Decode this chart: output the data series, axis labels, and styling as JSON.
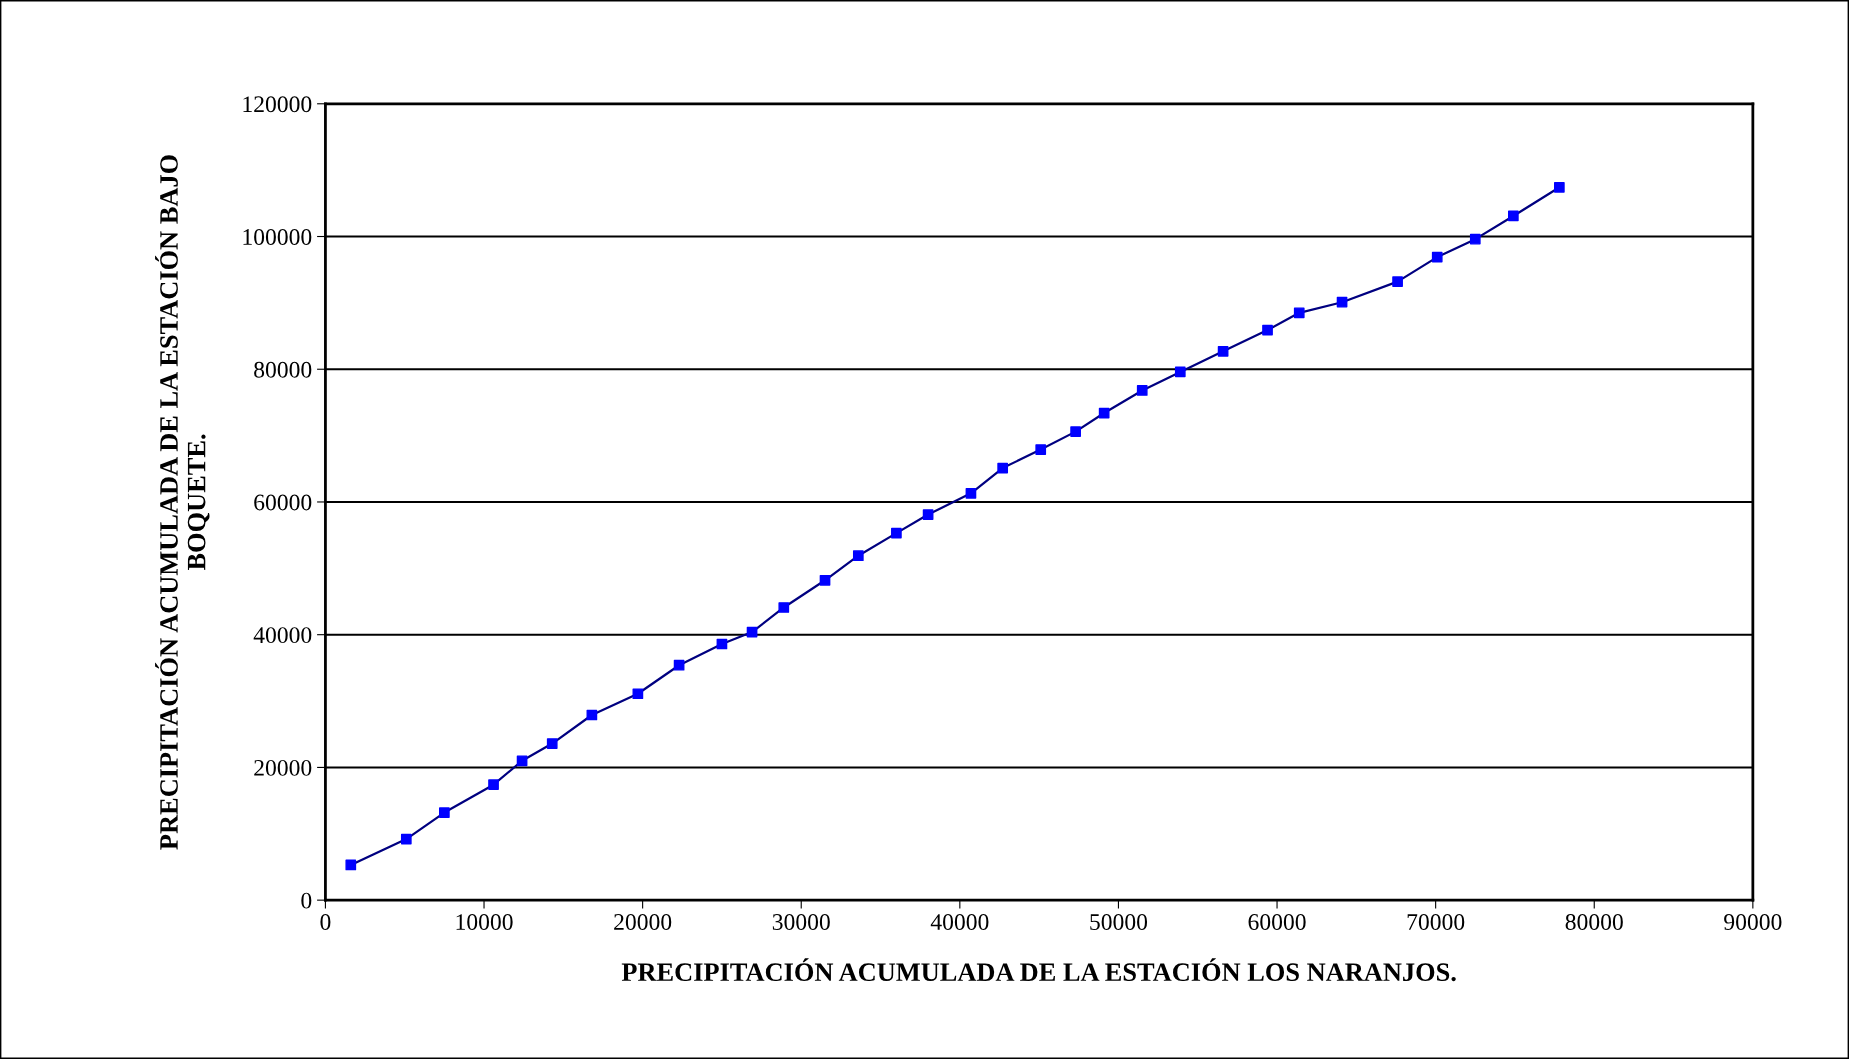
{
  "chart_data": {
    "type": "scatter",
    "xlabel": "PRECIPITACIÓN ACUMULADA DE LA ESTACIÓN LOS NARANJOS.",
    "ylabel": "PRECIPITACIÓN ACUMULADA DE LA ESTACIÓN BAJO\nBOQUETE.",
    "x": [
      1600,
      5100,
      7500,
      10600,
      12400,
      14300,
      16800,
      19700,
      22300,
      25000,
      26900,
      28900,
      31500,
      33600,
      36000,
      38000,
      40700,
      42700,
      45100,
      47300,
      49100,
      51500,
      53900,
      56600,
      59400,
      61400,
      64100,
      67600,
      70100,
      72500,
      74900,
      77800
    ],
    "series": [
      {
        "type": "line",
        "color": "#000080",
        "marker": "none",
        "values": [
          5300,
          9200,
          13200,
          17400,
          21000,
          23600,
          27900,
          31100,
          35400,
          38600,
          40400,
          44100,
          48200,
          51900,
          55300,
          58100,
          61300,
          65100,
          67900,
          70600,
          73400,
          76800,
          79600,
          82700,
          85900,
          88500,
          90100,
          93200,
          96900,
          99600,
          103100,
          107400
        ]
      },
      {
        "color": "#0000ff",
        "marker": "square",
        "values": [
          5300,
          9200,
          13200,
          17400,
          21000,
          23600,
          27900,
          31100,
          35400,
          38600,
          40400,
          44100,
          48200,
          51900,
          55300,
          58100,
          61300,
          65100,
          67900,
          70600,
          73400,
          76800,
          79600,
          82700,
          85900,
          88500,
          90100,
          93200,
          96900,
          99600,
          103100,
          107400
        ]
      }
    ],
    "xlim": [
      0,
      90000
    ],
    "xticks": [
      0,
      10000,
      20000,
      30000,
      40000,
      50000,
      60000,
      70000,
      80000,
      90000
    ],
    "ylim": [
      0,
      120000
    ],
    "yticks": [
      0,
      20000,
      40000,
      60000,
      80000,
      100000,
      120000
    ],
    "grid": "y"
  }
}
